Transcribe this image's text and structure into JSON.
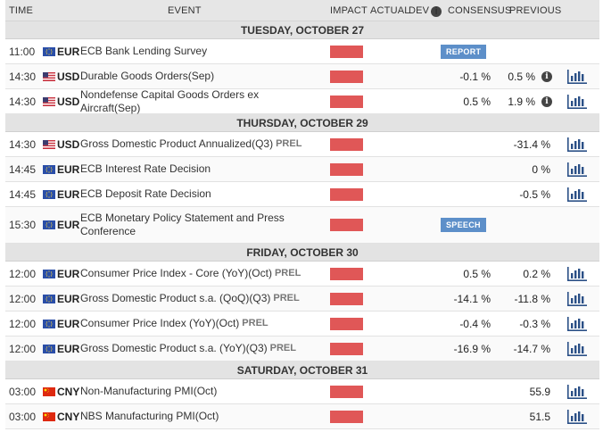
{
  "colors": {
    "impact_high": "#e05757",
    "badge": "#5d8fc9",
    "header_bg": "#e6e6e6"
  },
  "header": {
    "time": "TIME",
    "event": "EVENT",
    "impact": "IMPACT",
    "actual": "ACTUAL",
    "dev": "DEV",
    "dev_icon": "info-icon",
    "consensus": "CONSENSUS",
    "previous": "PREVIOUS"
  },
  "days": [
    {
      "label": "TUESDAY, OCTOBER 27",
      "events": [
        {
          "time": "11:00",
          "flag": "eu-flag",
          "currency": "EUR",
          "name": "ECB Bank Lending Survey",
          "prel": "",
          "consensus": "",
          "previous": "",
          "badge": "REPORT",
          "info": false,
          "chart": false,
          "tall": false
        },
        {
          "time": "14:30",
          "flag": "us-flag",
          "currency": "USD",
          "name": "Durable Goods Orders(Sep)",
          "prel": "",
          "consensus": "-0.1 %",
          "previous": "0.5 %",
          "badge": "",
          "info": true,
          "chart": true,
          "tall": false
        },
        {
          "time": "14:30",
          "flag": "us-flag",
          "currency": "USD",
          "name": "Nondefense Capital Goods Orders ex Aircraft(Sep)",
          "prel": "",
          "consensus": "0.5 %",
          "previous": "1.9 %",
          "badge": "",
          "info": true,
          "chart": true,
          "tall": false
        }
      ]
    },
    {
      "label": "THURSDAY, OCTOBER 29",
      "events": [
        {
          "time": "14:30",
          "flag": "us-flag",
          "currency": "USD",
          "name": "Gross Domestic Product Annualized(Q3)",
          "prel": "PREL",
          "consensus": "",
          "previous": "-31.4 %",
          "badge": "",
          "info": false,
          "chart": true,
          "tall": false
        },
        {
          "time": "14:45",
          "flag": "eu-flag",
          "currency": "EUR",
          "name": "ECB Interest Rate Decision",
          "prel": "",
          "consensus": "",
          "previous": "0 %",
          "badge": "",
          "info": false,
          "chart": true,
          "tall": false
        },
        {
          "time": "14:45",
          "flag": "eu-flag",
          "currency": "EUR",
          "name": "ECB Deposit Rate Decision",
          "prel": "",
          "consensus": "",
          "previous": "-0.5 %",
          "badge": "",
          "info": false,
          "chart": true,
          "tall": false
        },
        {
          "time": "15:30",
          "flag": "eu-flag",
          "currency": "EUR",
          "name": "ECB Monetary Policy Statement and Press Conference",
          "prel": "",
          "consensus": "",
          "previous": "",
          "badge": "SPEECH",
          "info": false,
          "chart": false,
          "tall": true
        }
      ]
    },
    {
      "label": "FRIDAY, OCTOBER 30",
      "events": [
        {
          "time": "12:00",
          "flag": "eu-flag",
          "currency": "EUR",
          "name": "Consumer Price Index - Core (YoY)(Oct)",
          "prel": "PREL",
          "consensus": "0.5 %",
          "previous": "0.2 %",
          "badge": "",
          "info": false,
          "chart": true,
          "tall": false
        },
        {
          "time": "12:00",
          "flag": "eu-flag",
          "currency": "EUR",
          "name": "Gross Domestic Product s.a. (QoQ)(Q3)",
          "prel": "PREL",
          "consensus": "-14.1 %",
          "previous": "-11.8 %",
          "badge": "",
          "info": false,
          "chart": true,
          "tall": false
        },
        {
          "time": "12:00",
          "flag": "eu-flag",
          "currency": "EUR",
          "name": "Consumer Price Index (YoY)(Oct)",
          "prel": "PREL",
          "consensus": "-0.4 %",
          "previous": "-0.3 %",
          "badge": "",
          "info": false,
          "chart": true,
          "tall": false
        },
        {
          "time": "12:00",
          "flag": "eu-flag",
          "currency": "EUR",
          "name": "Gross Domestic Product s.a. (YoY)(Q3)",
          "prel": "PREL",
          "consensus": "-16.9 %",
          "previous": "-14.7 %",
          "badge": "",
          "info": false,
          "chart": true,
          "tall": false
        }
      ]
    },
    {
      "label": "SATURDAY, OCTOBER 31",
      "events": [
        {
          "time": "03:00",
          "flag": "cn-flag",
          "currency": "CNY",
          "name": "Non-Manufacturing PMI(Oct)",
          "prel": "",
          "consensus": "",
          "previous": "55.9",
          "badge": "",
          "info": false,
          "chart": true,
          "tall": false
        },
        {
          "time": "03:00",
          "flag": "cn-flag",
          "currency": "CNY",
          "name": "NBS Manufacturing PMI(Oct)",
          "prel": "",
          "consensus": "",
          "previous": "51.5",
          "badge": "",
          "info": false,
          "chart": true,
          "tall": false
        }
      ]
    }
  ]
}
